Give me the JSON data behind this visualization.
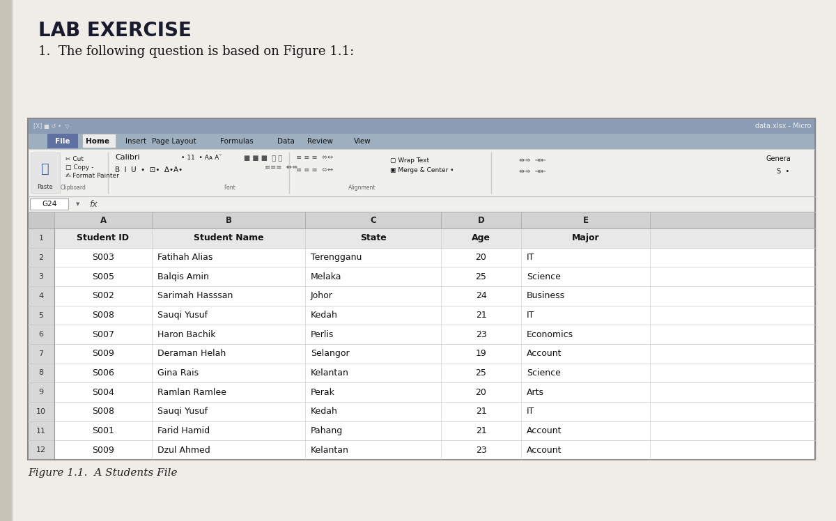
{
  "title": "LAB EXERCISE",
  "subtitle": "1.  The following question is based on Figure 1.1:",
  "figure_caption": "Figure 1.1.  A Students File",
  "excel_title": "data.xlsx - Micro",
  "cell_ref": "G24",
  "tabs": [
    "File",
    "Home",
    "Insert",
    "Page Layout",
    "Formulas",
    "Data",
    "Review",
    "View"
  ],
  "table_headers": [
    "Student ID",
    "Student Name",
    "State",
    "Age",
    "Major"
  ],
  "rows": [
    [
      "S003",
      "Fatihah Alias",
      "Terengganu",
      "20",
      "IT"
    ],
    [
      "S005",
      "Balqis Amin",
      "Melaka",
      "25",
      "Science"
    ],
    [
      "S002",
      "Sarimah Hasssan",
      "Johor",
      "24",
      "Business"
    ],
    [
      "S008",
      "Sauqi Yusuf",
      "Kedah",
      "21",
      "IT"
    ],
    [
      "S007",
      "Haron Bachik",
      "Perlis",
      "23",
      "Economics"
    ],
    [
      "S009",
      "Deraman Helah",
      "Selangor",
      "19",
      "Account"
    ],
    [
      "S006",
      "Gina Rais",
      "Kelantan",
      "25",
      "Science"
    ],
    [
      "S004",
      "Ramlan Ramlee",
      "Perak",
      "20",
      "Arts"
    ],
    [
      "S008",
      "Sauqi Yusuf",
      "Kedah",
      "21",
      "IT"
    ],
    [
      "S001",
      "Farid Hamid",
      "Pahang",
      "21",
      "Account"
    ],
    [
      "S009",
      "Dzul Ahmed",
      "Kelantan",
      "23",
      "Account"
    ]
  ],
  "page_bg": "#f0ede8",
  "excel_outer_bg": "#c8c8d0",
  "titlebar_bg": "#7b8fa8",
  "tab_bar_bg": "#9aaabb",
  "home_tab_bg": "#e8e8e8",
  "file_tab_bg": "#6070a0",
  "ribbon_bg": "#f0f0ee",
  "formula_bar_bg": "#f5f5f3",
  "col_header_bg": "#d0d0d0",
  "row_num_bg": "#d8d8d8",
  "header_row_bg": "#e4e4e4",
  "data_row_bg": "#ffffff",
  "grid_color": "#c8c8c8",
  "border_color": "#a0a0a0"
}
